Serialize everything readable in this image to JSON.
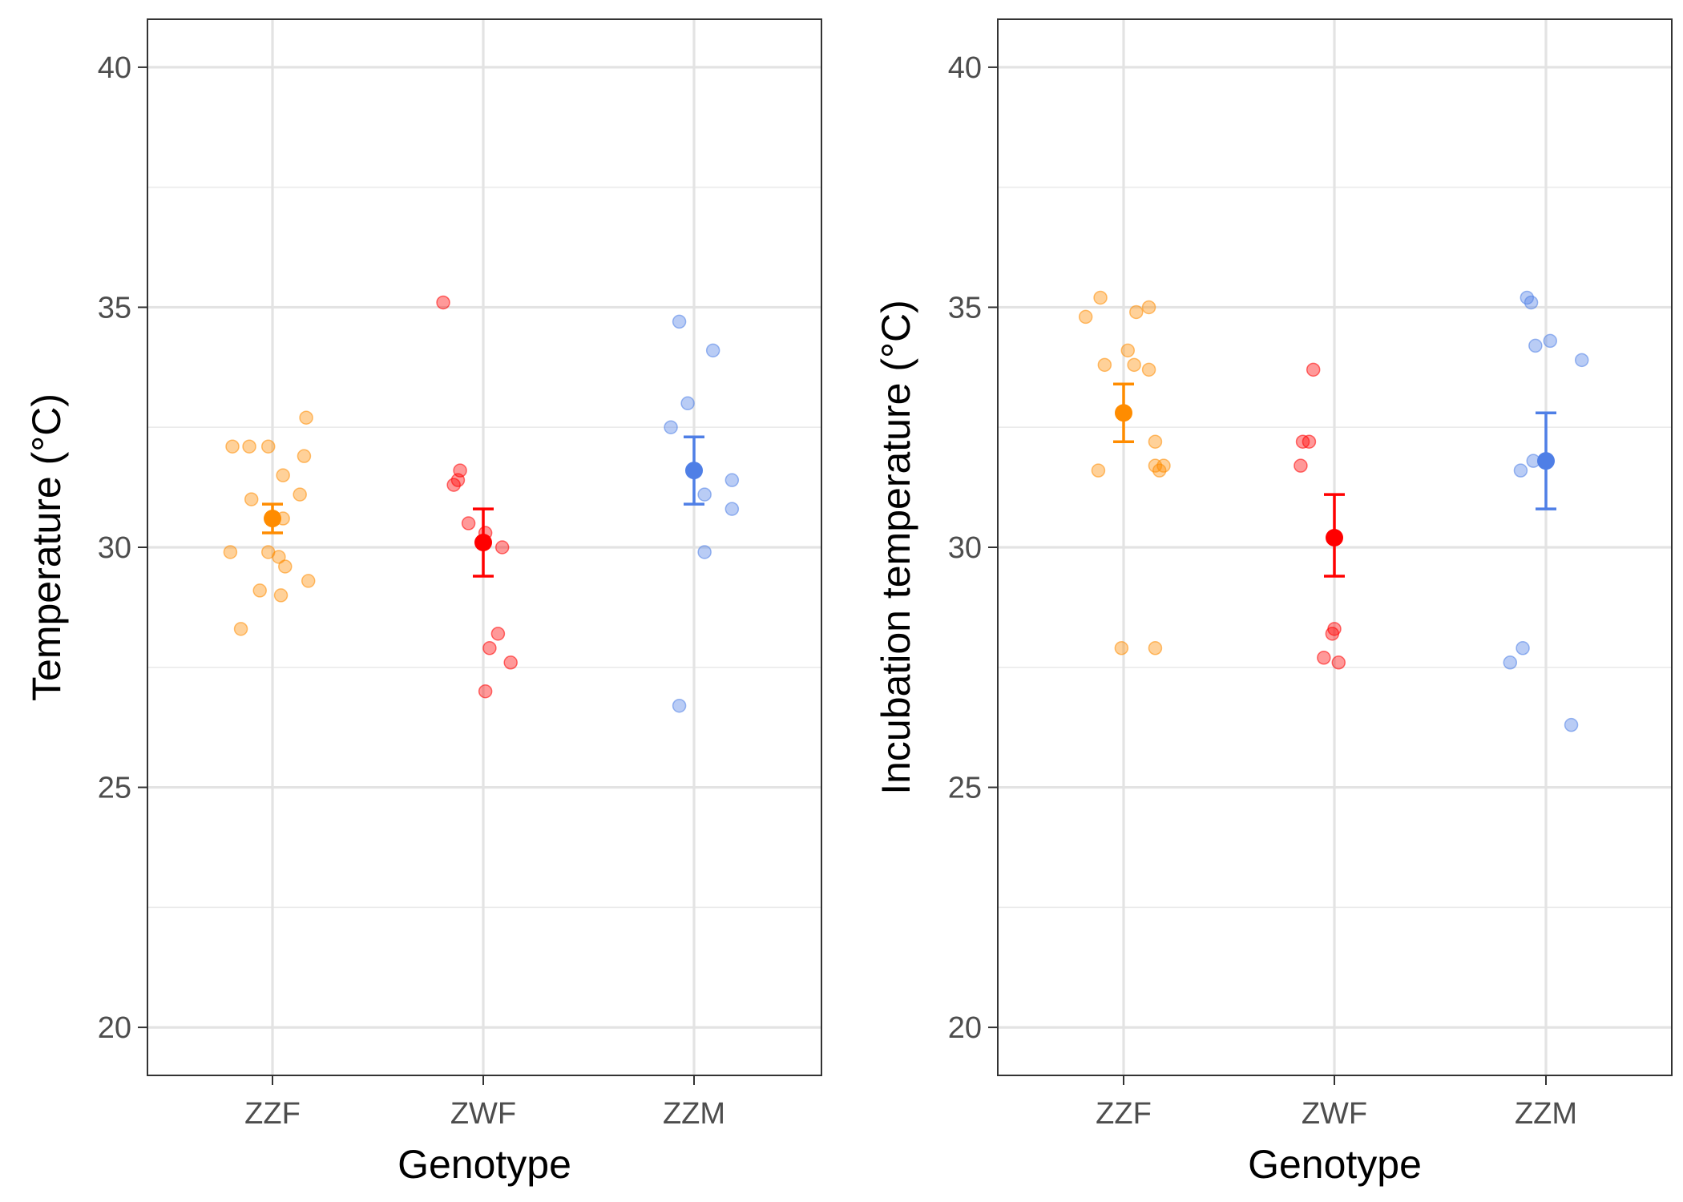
{
  "chart_data": [
    {
      "type": "scatter",
      "xlabel": "Genotype",
      "ylabel": "Temperature (°C)",
      "ylim": [
        19,
        41
      ],
      "yticks": [
        20,
        25,
        30,
        35,
        40
      ],
      "categories": [
        "ZZF",
        "ZWF",
        "ZZM"
      ],
      "grid": true,
      "series": [
        {
          "category": "ZZF",
          "color": "#FF8C00",
          "mean": 30.6,
          "lower": 30.3,
          "upper": 30.9,
          "points": [
            {
              "dx": -0.19,
              "y": 32.1
            },
            {
              "dx": -0.11,
              "y": 32.1
            },
            {
              "dx": -0.02,
              "y": 32.1
            },
            {
              "dx": 0.16,
              "y": 32.7
            },
            {
              "dx": 0.15,
              "y": 31.9
            },
            {
              "dx": 0.05,
              "y": 31.5
            },
            {
              "dx": -0.1,
              "y": 31.0
            },
            {
              "dx": 0.13,
              "y": 31.1
            },
            {
              "dx": 0.05,
              "y": 30.6
            },
            {
              "dx": -0.2,
              "y": 29.9
            },
            {
              "dx": -0.02,
              "y": 29.9
            },
            {
              "dx": 0.03,
              "y": 29.8
            },
            {
              "dx": 0.06,
              "y": 29.6
            },
            {
              "dx": 0.17,
              "y": 29.3
            },
            {
              "dx": -0.06,
              "y": 29.1
            },
            {
              "dx": 0.04,
              "y": 29.0
            },
            {
              "dx": -0.15,
              "y": 28.3
            }
          ]
        },
        {
          "category": "ZWF",
          "color": "#FF0000",
          "mean": 30.1,
          "lower": 29.4,
          "upper": 30.8,
          "points": [
            {
              "dx": -0.19,
              "y": 35.1
            },
            {
              "dx": -0.11,
              "y": 31.6
            },
            {
              "dx": -0.12,
              "y": 31.4
            },
            {
              "dx": -0.14,
              "y": 31.3
            },
            {
              "dx": -0.07,
              "y": 30.5
            },
            {
              "dx": 0.01,
              "y": 30.3
            },
            {
              "dx": 0.09,
              "y": 30.0
            },
            {
              "dx": 0.07,
              "y": 28.2
            },
            {
              "dx": 0.03,
              "y": 27.9
            },
            {
              "dx": 0.13,
              "y": 27.6
            },
            {
              "dx": 0.01,
              "y": 27.0
            }
          ]
        },
        {
          "category": "ZZM",
          "color": "#4F7FE6",
          "mean": 31.6,
          "lower": 30.9,
          "upper": 32.3,
          "points": [
            {
              "dx": -0.07,
              "y": 34.7
            },
            {
              "dx": 0.09,
              "y": 34.1
            },
            {
              "dx": -0.03,
              "y": 33.0
            },
            {
              "dx": -0.11,
              "y": 32.5
            },
            {
              "dx": 0.18,
              "y": 31.4
            },
            {
              "dx": 0.05,
              "y": 31.1
            },
            {
              "dx": 0.18,
              "y": 30.8
            },
            {
              "dx": 0.05,
              "y": 29.9
            },
            {
              "dx": -0.07,
              "y": 26.7
            }
          ]
        }
      ]
    },
    {
      "type": "scatter",
      "xlabel": "Genotype",
      "ylabel": "Incubation temperature (°C)",
      "ylim": [
        19,
        41
      ],
      "yticks": [
        20,
        25,
        30,
        35,
        40
      ],
      "categories": [
        "ZZF",
        "ZWF",
        "ZZM"
      ],
      "grid": true,
      "series": [
        {
          "category": "ZZF",
          "color": "#FF8C00",
          "mean": 32.8,
          "lower": 32.2,
          "upper": 33.4,
          "points": [
            {
              "dx": -0.18,
              "y": 34.8
            },
            {
              "dx": -0.11,
              "y": 35.2
            },
            {
              "dx": 0.06,
              "y": 34.9
            },
            {
              "dx": 0.12,
              "y": 35.0
            },
            {
              "dx": 0.02,
              "y": 34.1
            },
            {
              "dx": -0.09,
              "y": 33.8
            },
            {
              "dx": 0.05,
              "y": 33.8
            },
            {
              "dx": 0.12,
              "y": 33.7
            },
            {
              "dx": 0.15,
              "y": 32.2
            },
            {
              "dx": -0.12,
              "y": 31.6
            },
            {
              "dx": 0.15,
              "y": 31.7
            },
            {
              "dx": 0.17,
              "y": 31.6
            },
            {
              "dx": 0.19,
              "y": 31.7
            },
            {
              "dx": -0.01,
              "y": 27.9
            },
            {
              "dx": 0.15,
              "y": 27.9
            }
          ]
        },
        {
          "category": "ZWF",
          "color": "#FF0000",
          "mean": 30.2,
          "lower": 29.4,
          "upper": 31.1,
          "points": [
            {
              "dx": -0.1,
              "y": 33.7
            },
            {
              "dx": -0.12,
              "y": 32.2
            },
            {
              "dx": -0.15,
              "y": 32.2
            },
            {
              "dx": -0.16,
              "y": 31.7
            },
            {
              "dx": 0.0,
              "y": 28.3
            },
            {
              "dx": -0.01,
              "y": 28.2
            },
            {
              "dx": -0.05,
              "y": 27.7
            },
            {
              "dx": 0.02,
              "y": 27.6
            }
          ]
        },
        {
          "category": "ZZM",
          "color": "#4F7FE6",
          "mean": 31.8,
          "lower": 30.8,
          "upper": 32.8,
          "points": [
            {
              "dx": -0.09,
              "y": 35.2
            },
            {
              "dx": -0.07,
              "y": 35.1
            },
            {
              "dx": -0.05,
              "y": 34.2
            },
            {
              "dx": 0.02,
              "y": 34.3
            },
            {
              "dx": 0.17,
              "y": 33.9
            },
            {
              "dx": -0.06,
              "y": 31.8
            },
            {
              "dx": -0.12,
              "y": 31.6
            },
            {
              "dx": -0.11,
              "y": 27.9
            },
            {
              "dx": -0.17,
              "y": 27.6
            },
            {
              "dx": 0.12,
              "y": 26.3
            }
          ]
        }
      ]
    }
  ]
}
